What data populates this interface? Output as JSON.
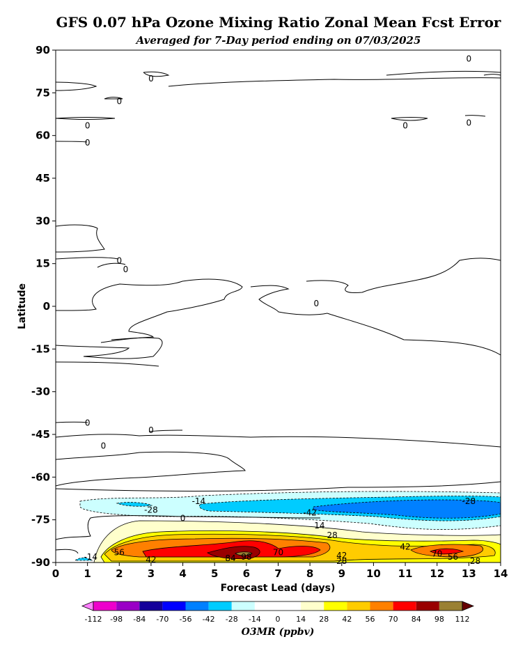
{
  "chart_data": {
    "type": "contour",
    "title": "GFS 0.07 hPa Ozone Mixing Ratio Zonal Mean Fcst Error",
    "subtitle": "Averaged for 7-Day period ending on 07/03/2025",
    "xlabel": "Forecast Lead (days)",
    "ylabel": "Latitude",
    "xlim": [
      0,
      14
    ],
    "ylim": [
      -90,
      90
    ],
    "x_ticks": [
      "0",
      "1",
      "2",
      "3",
      "4",
      "5",
      "6",
      "7",
      "8",
      "9",
      "10",
      "11",
      "12",
      "13",
      "14"
    ],
    "y_ticks": [
      "90",
      "75",
      "60",
      "45",
      "30",
      "15",
      "0",
      "-15",
      "-30",
      "-45",
      "-60",
      "-75",
      "-90"
    ],
    "colorbar": {
      "label": "O3MR (ppbv)",
      "ticks": [
        "-112",
        "-98",
        "-84",
        "-70",
        "-56",
        "-42",
        "-28",
        "-14",
        "0",
        "14",
        "28",
        "42",
        "56",
        "70",
        "84",
        "98",
        "112"
      ],
      "colors": [
        "#ee00cc",
        "#9a00c6",
        "#14009a",
        "#0000ff",
        "#0080ff",
        "#00ccff",
        "#ccffff",
        "#ffffff",
        "#ffffff",
        "#ffffcc",
        "#ffff00",
        "#ffcc00",
        "#ff8000",
        "#ff0000",
        "#990000",
        "#9a8033"
      ],
      "extend_low": "#ff80ff",
      "extend_high": "#660000"
    },
    "contour_labels": [
      {
        "text": "0",
        "x": 3.0,
        "y": 80
      },
      {
        "text": "0",
        "x": 2.0,
        "y": 72
      },
      {
        "text": "0",
        "x": 1.0,
        "y": 63.5
      },
      {
        "text": "0",
        "x": 1.0,
        "y": 57.5
      },
      {
        "text": "0",
        "x": 13.0,
        "y": 87
      },
      {
        "text": "0",
        "x": 11.0,
        "y": 63.5
      },
      {
        "text": "0",
        "x": 13.0,
        "y": 64.5
      },
      {
        "text": "0",
        "x": 2.0,
        "y": 16
      },
      {
        "text": "0",
        "x": 2.2,
        "y": 13
      },
      {
        "text": "0",
        "x": 8.2,
        "y": 1
      },
      {
        "text": "0",
        "x": 1.0,
        "y": -41
      },
      {
        "text": "0",
        "x": 3.0,
        "y": -43.5
      },
      {
        "text": "0",
        "x": 1.5,
        "y": -49
      },
      {
        "text": "0",
        "x": 4.0,
        "y": -74.5
      },
      {
        "text": "-14",
        "x": 4.5,
        "y": -68.5
      },
      {
        "text": "-28",
        "x": 3.0,
        "y": -71.5
      },
      {
        "text": "-42",
        "x": 8.0,
        "y": -72.5
      },
      {
        "text": "-28",
        "x": 13.0,
        "y": -68.5
      },
      {
        "text": "14",
        "x": 8.3,
        "y": -77
      },
      {
        "text": "28",
        "x": 8.7,
        "y": -80.5
      },
      {
        "text": "42",
        "x": 11.0,
        "y": -84.5
      },
      {
        "text": "56",
        "x": 2.0,
        "y": -86.5
      },
      {
        "text": "70",
        "x": 7.0,
        "y": -86.5
      },
      {
        "text": "84",
        "x": 5.5,
        "y": -88.5
      },
      {
        "text": "98",
        "x": 6.0,
        "y": -88
      },
      {
        "text": "42",
        "x": 3.0,
        "y": -89
      },
      {
        "text": "42",
        "x": 9.0,
        "y": -87.5
      },
      {
        "text": "28",
        "x": 9.0,
        "y": -89.5
      },
      {
        "text": "-14",
        "x": 1.1,
        "y": -88
      },
      {
        "text": "70",
        "x": 12.0,
        "y": -87
      },
      {
        "text": "56",
        "x": 12.5,
        "y": -88
      },
      {
        "text": "28",
        "x": 13.2,
        "y": -89.5
      }
    ]
  }
}
